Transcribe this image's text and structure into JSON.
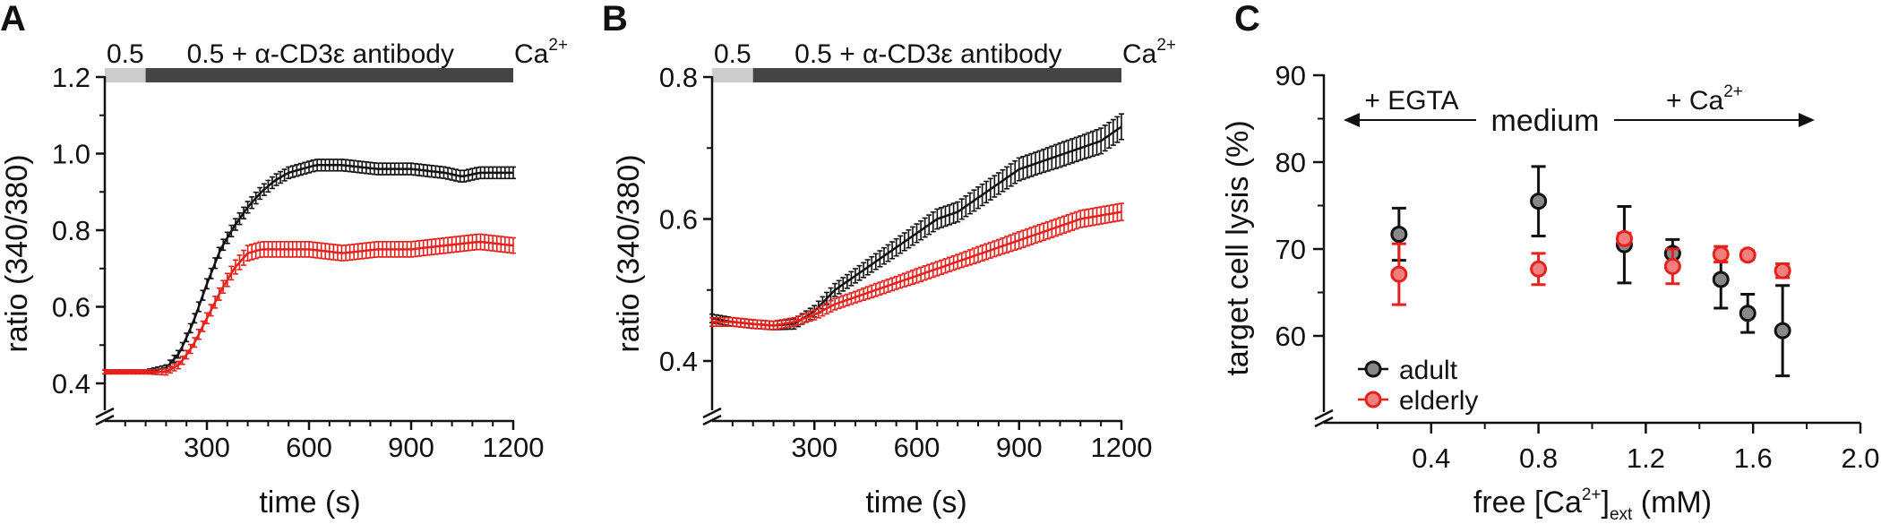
{
  "chart_data": [
    {
      "panel": "A",
      "type": "line",
      "xlabel": "time (s)",
      "ylabel": "ratio (340/380)",
      "xlim": [
        0,
        1200
      ],
      "ylim": [
        0.4,
        1.2
      ],
      "x_ticks": [
        300,
        600,
        900,
        1200
      ],
      "y_ticks": [
        0.4,
        0.6,
        0.8,
        1.0,
        1.2
      ],
      "y_tick_labels": [
        "0.4",
        "0.6",
        "0.8",
        "1.0",
        "1.2"
      ],
      "axis_break": true,
      "error_bars": true,
      "stimulation_bar": [
        {
          "label": "0.5",
          "start": 0,
          "end": 120,
          "color": "#cccccc"
        },
        {
          "label": "0.5 + α-CD3ε antibody",
          "start": 120,
          "end": 1200,
          "color": "#444444"
        }
      ],
      "stimulation_end_label": "Ca",
      "stimulation_end_sup": "2+",
      "series": [
        {
          "color": "#111111",
          "x": [
            0,
            60,
            120,
            180,
            220,
            260,
            300,
            340,
            380,
            420,
            460,
            500,
            540,
            580,
            620,
            700,
            800,
            900,
            1000,
            1050,
            1100,
            1150,
            1200
          ],
          "y": [
            0.43,
            0.43,
            0.43,
            0.44,
            0.48,
            0.56,
            0.66,
            0.75,
            0.81,
            0.86,
            0.9,
            0.93,
            0.95,
            0.96,
            0.97,
            0.97,
            0.96,
            0.96,
            0.95,
            0.94,
            0.95,
            0.95,
            0.95
          ],
          "err": [
            0.005,
            0.005,
            0.005,
            0.008,
            0.01,
            0.012,
            0.013,
            0.014,
            0.015,
            0.015,
            0.015,
            0.015,
            0.015,
            0.015,
            0.015,
            0.015,
            0.015,
            0.015,
            0.015,
            0.015,
            0.015,
            0.015,
            0.015
          ]
        },
        {
          "color": "#e8201c",
          "x": [
            0,
            60,
            120,
            180,
            220,
            260,
            300,
            340,
            380,
            420,
            460,
            500,
            600,
            700,
            800,
            900,
            1000,
            1100,
            1200
          ],
          "y": [
            0.43,
            0.43,
            0.43,
            0.43,
            0.45,
            0.5,
            0.57,
            0.64,
            0.7,
            0.74,
            0.75,
            0.75,
            0.75,
            0.74,
            0.75,
            0.75,
            0.76,
            0.77,
            0.76
          ],
          "err": [
            0.005,
            0.005,
            0.005,
            0.008,
            0.01,
            0.012,
            0.014,
            0.016,
            0.018,
            0.02,
            0.02,
            0.02,
            0.02,
            0.02,
            0.02,
            0.02,
            0.02,
            0.02,
            0.02
          ]
        }
      ]
    },
    {
      "panel": "B",
      "type": "line",
      "xlabel": "time (s)",
      "ylabel": "ratio (340/380)",
      "xlim": [
        0,
        1200
      ],
      "ylim": [
        0.4,
        0.8
      ],
      "x_ticks": [
        300,
        600,
        900,
        1200
      ],
      "y_ticks": [
        0.4,
        0.6,
        0.8
      ],
      "y_tick_labels": [
        "0.4",
        "0.6",
        "0.8"
      ],
      "axis_break": true,
      "error_bars": true,
      "stimulation_bar": [
        {
          "label": "0.5",
          "start": 0,
          "end": 120,
          "color": "#cccccc"
        },
        {
          "label": "0.5 + α-CD3ε antibody",
          "start": 120,
          "end": 1200,
          "color": "#444444"
        }
      ],
      "stimulation_end_label": "Ca",
      "stimulation_end_sup": "2+",
      "series": [
        {
          "color": "#111111",
          "x": [
            0,
            60,
            120,
            180,
            240,
            300,
            360,
            420,
            480,
            540,
            600,
            660,
            720,
            780,
            840,
            900,
            960,
            1020,
            1080,
            1140,
            1200
          ],
          "y": [
            0.46,
            0.455,
            0.452,
            0.45,
            0.452,
            0.47,
            0.5,
            0.52,
            0.54,
            0.56,
            0.58,
            0.6,
            0.61,
            0.63,
            0.65,
            0.67,
            0.68,
            0.69,
            0.7,
            0.71,
            0.73
          ],
          "err": [
            0.006,
            0.006,
            0.006,
            0.006,
            0.007,
            0.008,
            0.009,
            0.01,
            0.011,
            0.012,
            0.013,
            0.014,
            0.014,
            0.015,
            0.015,
            0.016,
            0.016,
            0.017,
            0.017,
            0.018,
            0.018
          ]
        },
        {
          "color": "#e8201c",
          "x": [
            0,
            60,
            120,
            180,
            240,
            300,
            360,
            420,
            480,
            540,
            600,
            660,
            720,
            780,
            840,
            900,
            960,
            1020,
            1080,
            1140,
            1200
          ],
          "y": [
            0.455,
            0.455,
            0.452,
            0.45,
            0.455,
            0.465,
            0.48,
            0.49,
            0.5,
            0.51,
            0.52,
            0.53,
            0.54,
            0.55,
            0.56,
            0.57,
            0.58,
            0.59,
            0.6,
            0.605,
            0.61
          ],
          "err": [
            0.006,
            0.006,
            0.006,
            0.006,
            0.006,
            0.007,
            0.008,
            0.008,
            0.009,
            0.009,
            0.01,
            0.01,
            0.01,
            0.011,
            0.011,
            0.012,
            0.012,
            0.012,
            0.012,
            0.012,
            0.012
          ]
        }
      ]
    },
    {
      "panel": "C",
      "type": "scatter",
      "xlabel_main": "free [Ca",
      "xlabel_sup": "2+",
      "xlabel_close": "]",
      "xlabel_sub": "ext",
      "xlabel_unit": " (mM)",
      "ylabel": "target cell lysis (%)",
      "xlim": [
        0,
        2.0
      ],
      "ylim": [
        50,
        90
      ],
      "x_ticks": [
        0.4,
        0.8,
        1.2,
        1.6,
        2.0
      ],
      "x_tick_labels": [
        "0.4",
        "0.8",
        "1.2",
        "1.6",
        "2.0"
      ],
      "y_ticks": [
        60,
        70,
        80,
        90
      ],
      "axis_break": true,
      "error_bars": true,
      "annotations": {
        "left": "+ EGTA",
        "center": "medium",
        "right_main": "+ Ca",
        "right_sup": "2+"
      },
      "legend_position": "bottom-left",
      "series": [
        {
          "name": "adult",
          "marker_fill": "#888888",
          "marker_edge": "#111111",
          "x": [
            0.28,
            0.8,
            1.12,
            1.3,
            1.48,
            1.58,
            1.71
          ],
          "y": [
            71.7,
            75.5,
            70.5,
            69.5,
            66.5,
            62.6,
            60.6
          ],
          "err": [
            3.0,
            4.0,
            4.4,
            1.6,
            3.3,
            2.2,
            5.2
          ]
        },
        {
          "name": "elderly",
          "marker_fill": "#f08080",
          "marker_edge": "#e8201c",
          "x": [
            0.28,
            0.8,
            1.12,
            1.3,
            1.48,
            1.58,
            1.71
          ],
          "y": [
            67.1,
            67.7,
            71.2,
            68.0,
            69.4,
            69.3,
            67.5
          ],
          "err": [
            3.5,
            1.8,
            0.6,
            2.0,
            0.9,
            0.5,
            0.8
          ]
        }
      ]
    }
  ]
}
